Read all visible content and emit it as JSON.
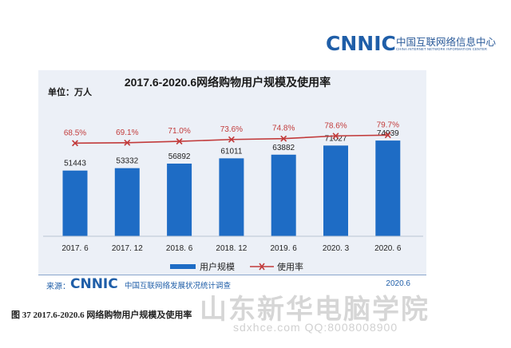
{
  "logo": {
    "word": "CNNIC",
    "cn": "中国互联网络信息中心",
    "en": "CHINA INTERNET NETWORK INFORMATION CENTER"
  },
  "unit_label": "单位：万人",
  "source": {
    "label": "来源：",
    "logo": "CNNIC",
    "text": "中国互联网络发展状况统计调查",
    "date": "2020.6"
  },
  "caption": "图 37    2017.6-2020.6 网络购物用户规模及使用率",
  "watermark": {
    "text": "山东新华电脑学院",
    "url": "sdxhce.com      QQ:8008008900"
  },
  "colors": {
    "bar": "#1e6cc5",
    "line": "#c23b3b",
    "panel": "#ecf0f7",
    "title": "#1a1a1a"
  },
  "chart_data": {
    "type": "bar+line",
    "title": "2017.6-2020.6网络购物用户规模及使用率",
    "categories": [
      "2017. 6",
      "2017. 12",
      "2018. 6",
      "2018. 12",
      "2019. 6",
      "2020. 3",
      "2020. 6"
    ],
    "series": [
      {
        "name": "用户规模",
        "type": "bar",
        "values": [
          51443,
          53332,
          56892,
          61011,
          63882,
          71027,
          74939
        ],
        "labels": [
          "51443",
          "53332",
          "56892",
          "61011",
          "63882",
          "71027",
          "74939"
        ]
      },
      {
        "name": "使用率",
        "type": "line",
        "values": [
          68.5,
          69.1,
          71.0,
          73.6,
          74.8,
          78.6,
          79.7
        ],
        "labels": [
          "68.5%",
          "69.1%",
          "71.0%",
          "73.6%",
          "74.8%",
          "78.6%",
          "79.7%"
        ]
      }
    ],
    "bar_ylim": [
      0,
      150000
    ],
    "line_ylim": [
      0,
      100
    ],
    "legend_position": "bottom",
    "grid": false
  }
}
